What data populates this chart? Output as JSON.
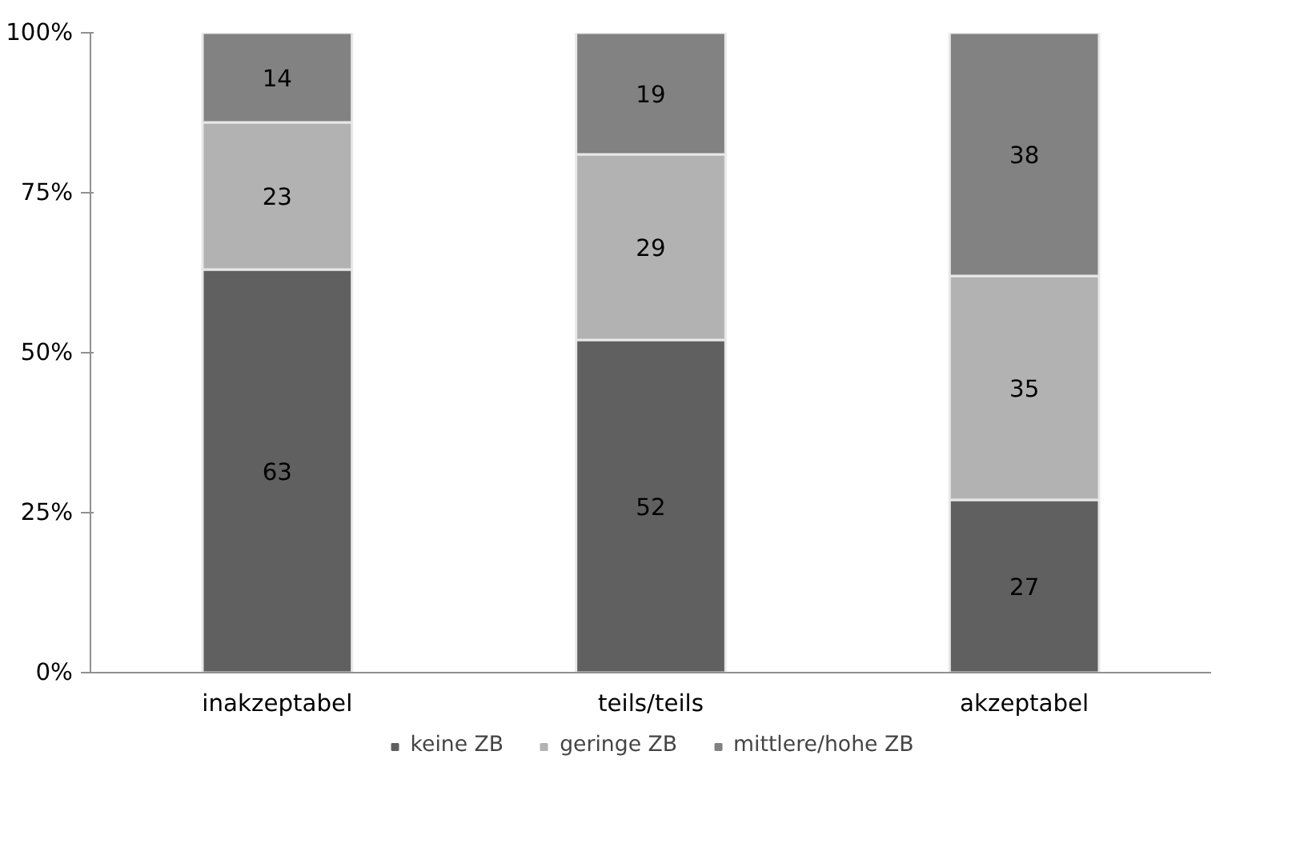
{
  "chart_data": {
    "type": "bar",
    "stacked": true,
    "categories": [
      "inakzeptabel",
      "teils/teils",
      "akzeptabel"
    ],
    "series": [
      {
        "name": "keine ZB",
        "color": "#606060",
        "values": [
          63,
          52,
          27
        ]
      },
      {
        "name": "geringe ZB",
        "color": "#b2b2b2",
        "values": [
          23,
          29,
          35
        ]
      },
      {
        "name": "mittlere/hohe ZB",
        "color": "#828282",
        "values": [
          14,
          19,
          38
        ]
      }
    ],
    "ylim": [
      0,
      100
    ],
    "yticks": [
      {
        "value": 0,
        "label": "0%"
      },
      {
        "value": 25,
        "label": "25%"
      },
      {
        "value": 50,
        "label": "50%"
      },
      {
        "value": 75,
        "label": "75%"
      },
      {
        "value": 100,
        "label": "100%"
      }
    ],
    "data_labels": true,
    "legend": "bottom",
    "grid": false
  }
}
